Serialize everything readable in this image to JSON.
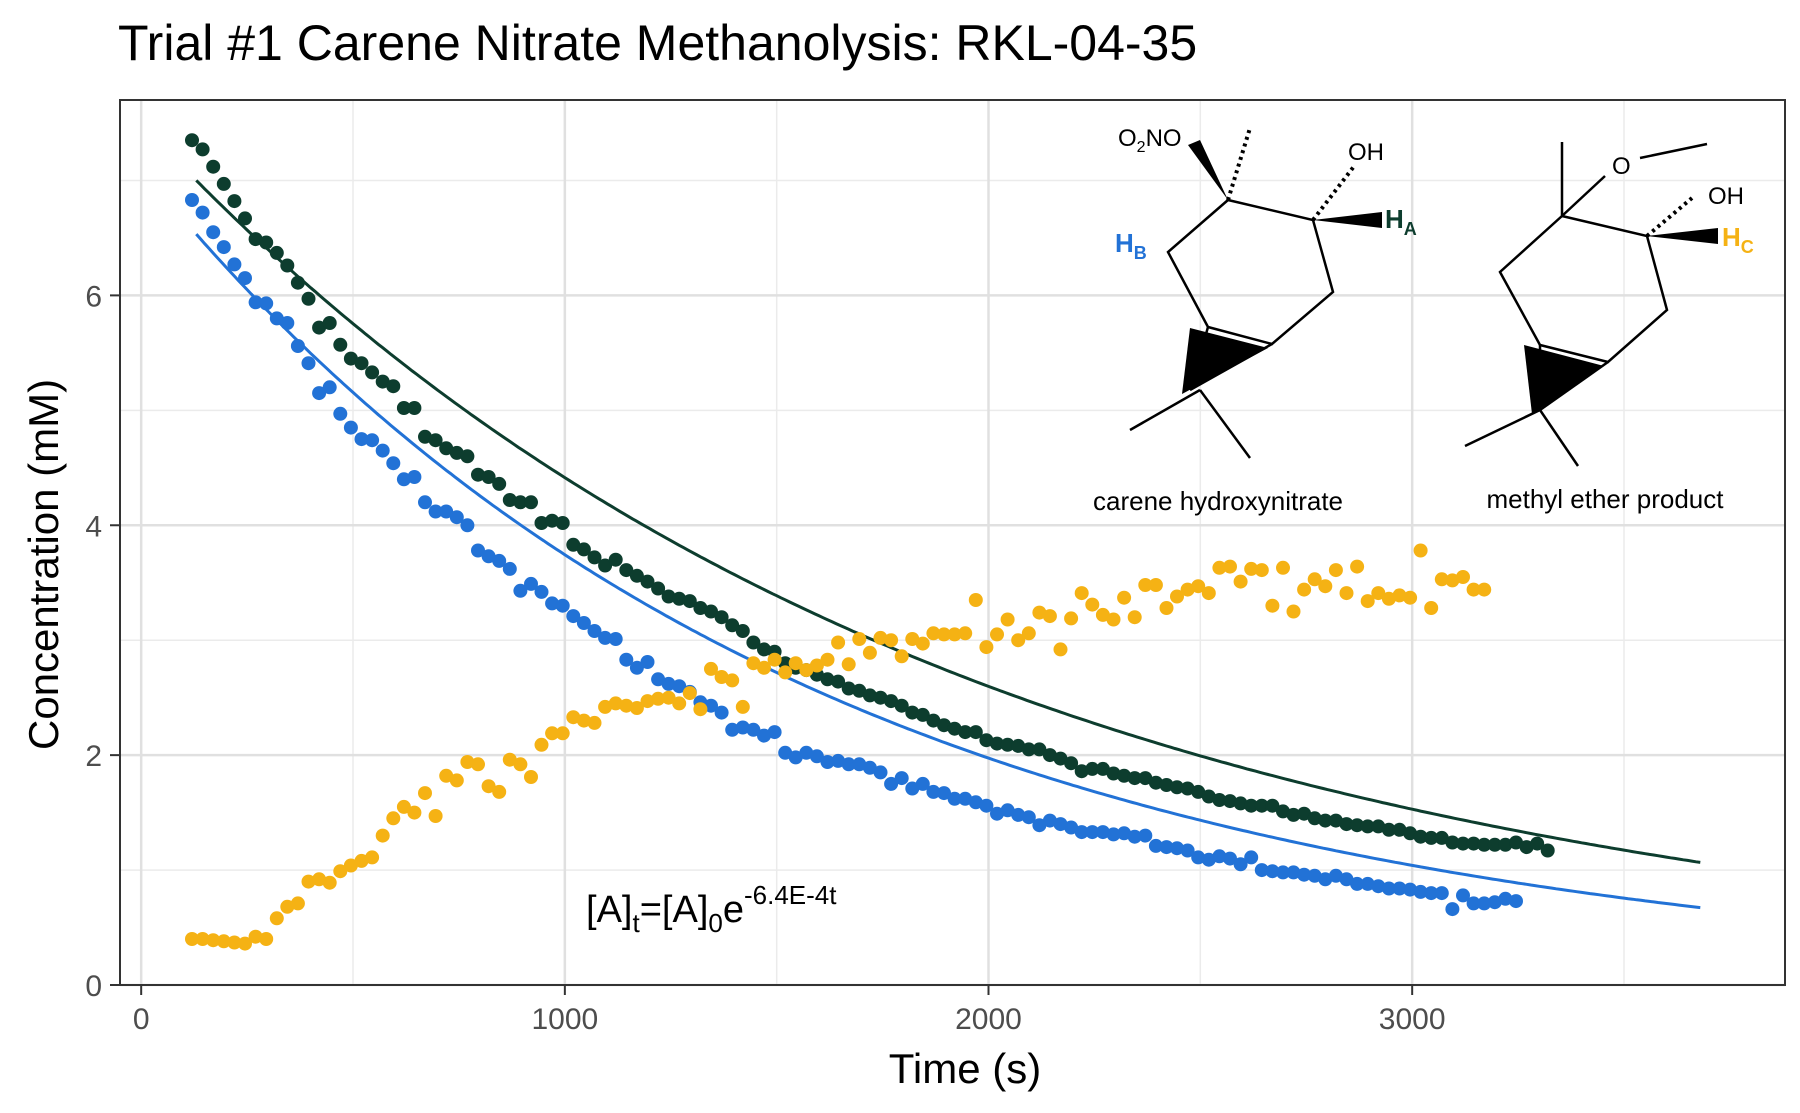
{
  "chart_data": {
    "type": "scatter",
    "title": "Trial #1 Carene Nitrate Methanolysis: RKL-04-35",
    "xlabel": "Time (s)",
    "ylabel": "Concentration (mM)",
    "xlim": [
      -50,
      3880
    ],
    "ylim": [
      0,
      7.7
    ],
    "x_ticks": [
      0,
      1000,
      2000,
      3000
    ],
    "x_tick_labels": [
      "0",
      "1000",
      "2000",
      "3000"
    ],
    "y_ticks": [
      0,
      2,
      4,
      6
    ],
    "y_tick_labels": [
      "0",
      "2",
      "4",
      "6"
    ],
    "grid": true,
    "legend": "none",
    "colors": {
      "dark_green": "#0d3d2e",
      "blue": "#2272d6",
      "gold": "#f5b214"
    },
    "series": [
      {
        "color": "#0d3d2e",
        "x_start": 120,
        "x_step": 25,
        "y": [
          7.35,
          7.27,
          7.12,
          6.97,
          6.82,
          6.67,
          6.49,
          6.46,
          6.37,
          6.26,
          6.11,
          5.97,
          5.72,
          5.76,
          5.57,
          5.45,
          5.41,
          5.33,
          5.25,
          5.21,
          5.02,
          5.02,
          4.77,
          4.74,
          4.67,
          4.63,
          4.6,
          4.44,
          4.42,
          4.36,
          4.22,
          4.2,
          4.2,
          4.02,
          4.04,
          4.02,
          3.83,
          3.79,
          3.72,
          3.65,
          3.7,
          3.61,
          3.56,
          3.51,
          3.45,
          3.38,
          3.36,
          3.34,
          3.28,
          3.25,
          3.2,
          3.13,
          3.08,
          2.98,
          2.92,
          2.9,
          2.8,
          2.76,
          2.74,
          2.7,
          2.66,
          2.64,
          2.58,
          2.56,
          2.52,
          2.5,
          2.47,
          2.43,
          2.37,
          2.35,
          2.3,
          2.26,
          2.23,
          2.2,
          2.2,
          2.13,
          2.1,
          2.09,
          2.08,
          2.05,
          2.05,
          2.0,
          1.97,
          1.93,
          1.86,
          1.88,
          1.88,
          1.84,
          1.82,
          1.8,
          1.8,
          1.76,
          1.74,
          1.72,
          1.71,
          1.68,
          1.64,
          1.61,
          1.6,
          1.58,
          1.56,
          1.56,
          1.56,
          1.51,
          1.48,
          1.49,
          1.45,
          1.43,
          1.43,
          1.4,
          1.39,
          1.38,
          1.38,
          1.35,
          1.35,
          1.32,
          1.29,
          1.28,
          1.28,
          1.24,
          1.23,
          1.23,
          1.22,
          1.22,
          1.22,
          1.24,
          1.2,
          1.23,
          1.17
        ]
      },
      {
        "color": "#2272d6",
        "x_start": 120,
        "x_step": 25,
        "y": [
          6.83,
          6.72,
          6.55,
          6.42,
          6.27,
          6.15,
          5.94,
          5.93,
          5.8,
          5.76,
          5.56,
          5.41,
          5.15,
          5.2,
          4.97,
          4.85,
          4.75,
          4.74,
          4.65,
          4.54,
          4.4,
          4.42,
          4.2,
          4.12,
          4.12,
          4.07,
          4.0,
          3.78,
          3.73,
          3.69,
          3.62,
          3.43,
          3.49,
          3.42,
          3.32,
          3.3,
          3.21,
          3.15,
          3.08,
          3.02,
          3.01,
          2.83,
          2.76,
          2.81,
          2.66,
          2.62,
          2.6,
          2.55,
          2.46,
          2.43,
          2.37,
          2.22,
          2.24,
          2.22,
          2.17,
          2.2,
          2.02,
          1.98,
          2.02,
          1.99,
          1.94,
          1.95,
          1.92,
          1.92,
          1.89,
          1.85,
          1.75,
          1.8,
          1.71,
          1.75,
          1.68,
          1.67,
          1.62,
          1.62,
          1.59,
          1.56,
          1.49,
          1.52,
          1.48,
          1.46,
          1.39,
          1.43,
          1.4,
          1.37,
          1.33,
          1.33,
          1.33,
          1.31,
          1.32,
          1.29,
          1.3,
          1.21,
          1.2,
          1.19,
          1.17,
          1.11,
          1.09,
          1.12,
          1.1,
          1.05,
          1.11,
          1.0,
          0.99,
          0.98,
          0.98,
          0.96,
          0.95,
          0.92,
          0.95,
          0.92,
          0.88,
          0.88,
          0.86,
          0.84,
          0.84,
          0.83,
          0.81,
          0.8,
          0.8,
          0.66,
          0.78,
          0.71,
          0.71,
          0.72,
          0.75,
          0.73
        ]
      },
      {
        "color": "#f5b214",
        "x_start": 120,
        "x_step": 25,
        "y": [
          0.4,
          0.4,
          0.39,
          0.38,
          0.37,
          0.36,
          0.42,
          0.4,
          0.58,
          0.68,
          0.71,
          0.9,
          0.92,
          0.89,
          0.99,
          1.04,
          1.08,
          1.11,
          1.3,
          1.45,
          1.55,
          1.5,
          1.67,
          1.47,
          1.82,
          1.78,
          1.94,
          1.92,
          1.73,
          1.68,
          1.96,
          1.92,
          1.81,
          2.09,
          2.19,
          2.19,
          2.33,
          2.3,
          2.28,
          2.42,
          2.45,
          2.43,
          2.41,
          2.47,
          2.49,
          2.5,
          2.45,
          2.54,
          2.4,
          2.75,
          2.68,
          2.65,
          2.42,
          2.8,
          2.76,
          2.83,
          2.72,
          2.8,
          2.74,
          2.78,
          2.83,
          2.98,
          2.79,
          3.01,
          2.89,
          3.02,
          3.0,
          2.86,
          3.01,
          2.97,
          3.06,
          3.05,
          3.05,
          3.06,
          3.35,
          2.94,
          3.05,
          3.18,
          3.0,
          3.06,
          3.24,
          3.21,
          2.92,
          3.19,
          3.41,
          3.31,
          3.22,
          3.18,
          3.37,
          3.2,
          3.48,
          3.48,
          3.28,
          3.38,
          3.44,
          3.47,
          3.41,
          3.63,
          3.64,
          3.51,
          3.62,
          3.61,
          3.3,
          3.63,
          3.25,
          3.44,
          3.53,
          3.47,
          3.61,
          3.41,
          3.64,
          3.34,
          3.41,
          3.36,
          3.39,
          3.37,
          3.78,
          3.28,
          3.53,
          3.52,
          3.55,
          3.44,
          3.44
        ]
      }
    ],
    "fits": [
      {
        "color": "#0d3d2e",
        "a0": 7.5,
        "k": 0.00053,
        "x_start": 130,
        "x_end": 3680
      },
      {
        "color": "#2272d6",
        "a0": 7.1,
        "k": 0.00064,
        "x_start": 130,
        "x_end": 3680
      }
    ],
    "annotation": {
      "eq_base": "[A]",
      "eq_sub_t": "t",
      "eq_mid": "=[A]",
      "eq_sub_0": "0",
      "eq_e": "e",
      "eq_sup": "-6.4E-4t",
      "x": 1050,
      "y": 0.55
    },
    "structures": {
      "left_caption": "carene hydroxynitrate",
      "right_caption": "methyl ether product",
      "o2no": "O",
      "o2no_sub": "2",
      "o2no_tail": "NO",
      "oh": "OH",
      "h": "H",
      "hb_sub": "B",
      "ha_sub": "A",
      "hc_sub": "C",
      "o": "O"
    }
  }
}
